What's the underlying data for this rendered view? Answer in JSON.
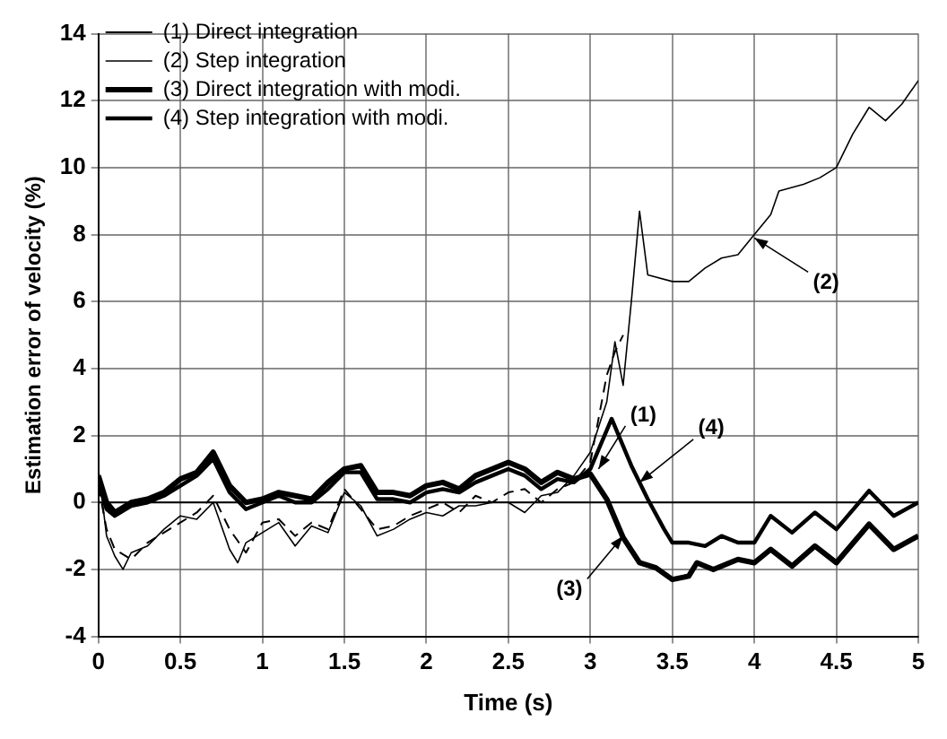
{
  "chart_data": {
    "type": "line",
    "xlabel": "Time (s)",
    "ylabel": "Estimation error of velocity (%)",
    "xlim": [
      0,
      5
    ],
    "ylim": [
      -4,
      14
    ],
    "xticks": [
      0,
      0.5,
      1,
      1.5,
      2,
      2.5,
      3,
      3.5,
      4,
      4.5,
      5
    ],
    "yticks": [
      -4,
      -2,
      0,
      2,
      4,
      6,
      8,
      10,
      12,
      14
    ],
    "grid": true,
    "legend": "top left",
    "marker": "none",
    "ref_lines": [
      {
        "axis": "y",
        "value": 0,
        "color": "#000000",
        "line_style": "solid"
      }
    ],
    "annotations": [
      {
        "text": "(1)",
        "x": 3.05,
        "y": 1.0
      },
      {
        "text": "(2)",
        "x": 4.0,
        "y": 7.9
      },
      {
        "text": "(3)",
        "x": 3.2,
        "y": -1.0
      },
      {
        "text": "(4)",
        "x": 3.3,
        "y": 0.6
      }
    ],
    "series": [
      {
        "name": "(1) Direct integration",
        "color": "#000000",
        "line_style": "dashed",
        "x": [
          0,
          0.05,
          0.1,
          0.2,
          0.3,
          0.4,
          0.5,
          0.6,
          0.7,
          0.8,
          0.9,
          1.0,
          1.1,
          1.2,
          1.3,
          1.4,
          1.5,
          1.6,
          1.7,
          1.8,
          1.9,
          2.0,
          2.1,
          2.2,
          2.3,
          2.4,
          2.5,
          2.6,
          2.7,
          2.8,
          2.9,
          3.0,
          3.05,
          3.1,
          3.15,
          3.2
        ],
        "values": [
          0.5,
          -0.8,
          -1.4,
          -1.7,
          -1.2,
          -0.9,
          -0.6,
          -0.3,
          0.2,
          -0.8,
          -1.5,
          -0.6,
          -0.5,
          -1.0,
          -0.6,
          -0.8,
          0.4,
          -0.2,
          -0.8,
          -0.7,
          -0.4,
          -0.2,
          0.0,
          -0.3,
          0.2,
          0.0,
          0.3,
          0.4,
          0.0,
          0.4,
          0.6,
          1.2,
          2.5,
          3.8,
          4.5,
          5.0
        ]
      },
      {
        "name": "(2) Step integration",
        "color": "#000000",
        "line_style": "solid",
        "x": [
          0,
          0.05,
          0.1,
          0.15,
          0.2,
          0.3,
          0.4,
          0.5,
          0.6,
          0.7,
          0.8,
          0.85,
          0.9,
          1.0,
          1.1,
          1.2,
          1.3,
          1.4,
          1.5,
          1.6,
          1.7,
          1.8,
          1.9,
          2.0,
          2.1,
          2.2,
          2.3,
          2.4,
          2.5,
          2.6,
          2.7,
          2.8,
          2.9,
          3.0,
          3.1,
          3.15,
          3.2,
          3.25,
          3.3,
          3.35,
          3.5,
          3.6,
          3.7,
          3.8,
          3.9,
          4.0,
          4.1,
          4.15,
          4.3,
          4.4,
          4.5,
          4.6,
          4.7,
          4.8,
          4.9,
          5.0
        ],
        "values": [
          1.0,
          -1.0,
          -1.6,
          -2.0,
          -1.5,
          -1.3,
          -0.8,
          -0.4,
          -0.5,
          0.0,
          -1.4,
          -1.8,
          -1.2,
          -0.9,
          -0.6,
          -1.3,
          -0.7,
          -0.9,
          0.3,
          -0.1,
          -1.0,
          -0.8,
          -0.5,
          -0.3,
          -0.4,
          -0.1,
          -0.1,
          0.0,
          0.0,
          -0.3,
          0.2,
          0.3,
          0.8,
          1.5,
          3.0,
          4.8,
          3.5,
          6.0,
          8.7,
          6.8,
          6.6,
          6.6,
          7.0,
          7.3,
          7.4,
          8.0,
          8.6,
          9.3,
          9.5,
          9.7,
          10.0,
          11.0,
          11.8,
          11.4,
          11.9,
          12.6
        ]
      },
      {
        "name": "(3) Direct integration with modi.",
        "color": "#000000",
        "line_style": "solid",
        "x": [
          0,
          0.05,
          0.1,
          0.2,
          0.3,
          0.4,
          0.5,
          0.6,
          0.7,
          0.8,
          0.9,
          1.0,
          1.1,
          1.2,
          1.3,
          1.4,
          1.5,
          1.6,
          1.7,
          1.8,
          1.9,
          2.0,
          2.1,
          2.2,
          2.3,
          2.4,
          2.5,
          2.6,
          2.7,
          2.8,
          2.9,
          3.0,
          3.1,
          3.2,
          3.3,
          3.4,
          3.5,
          3.6,
          3.65,
          3.75,
          3.9,
          4.0,
          4.1,
          4.23,
          4.37,
          4.5,
          4.7,
          4.85,
          5.0
        ],
        "values": [
          0.8,
          0.0,
          -0.3,
          0.0,
          0.1,
          0.3,
          0.7,
          0.9,
          1.5,
          0.5,
          0.0,
          0.1,
          0.3,
          0.2,
          0.1,
          0.6,
          1.0,
          1.1,
          0.3,
          0.3,
          0.2,
          0.5,
          0.6,
          0.4,
          0.8,
          1.0,
          1.2,
          1.0,
          0.6,
          0.9,
          0.7,
          0.85,
          0.1,
          -1.05,
          -1.8,
          -1.95,
          -2.3,
          -2.2,
          -1.8,
          -2.0,
          -1.7,
          -1.8,
          -1.4,
          -1.9,
          -1.3,
          -1.8,
          -0.65,
          -1.4,
          -1.0
        ]
      },
      {
        "name": "(4) Step integration with modi.",
        "color": "#000000",
        "line_style": "solid",
        "x": [
          0,
          0.05,
          0.1,
          0.2,
          0.3,
          0.4,
          0.5,
          0.6,
          0.7,
          0.8,
          0.9,
          1.0,
          1.1,
          1.2,
          1.3,
          1.4,
          1.5,
          1.6,
          1.7,
          1.8,
          1.9,
          2.0,
          2.1,
          2.2,
          2.3,
          2.4,
          2.5,
          2.6,
          2.7,
          2.8,
          2.9,
          3.0,
          3.13,
          3.25,
          3.35,
          3.45,
          3.5,
          3.6,
          3.7,
          3.8,
          3.9,
          4.0,
          4.1,
          4.23,
          4.37,
          4.5,
          4.7,
          4.85,
          5.0
        ],
        "values": [
          0.6,
          -0.2,
          -0.4,
          -0.1,
          0.0,
          0.2,
          0.5,
          0.8,
          1.3,
          0.3,
          -0.2,
          0.0,
          0.2,
          0.0,
          0.0,
          0.4,
          0.9,
          0.9,
          0.1,
          0.1,
          0.0,
          0.3,
          0.4,
          0.3,
          0.6,
          0.8,
          1.0,
          0.8,
          0.4,
          0.7,
          0.6,
          1.0,
          2.5,
          1.1,
          0.1,
          -0.8,
          -1.2,
          -1.2,
          -1.3,
          -1.0,
          -1.2,
          -1.2,
          -0.4,
          -0.9,
          -0.3,
          -0.8,
          0.35,
          -0.4,
          0.0
        ]
      }
    ]
  }
}
